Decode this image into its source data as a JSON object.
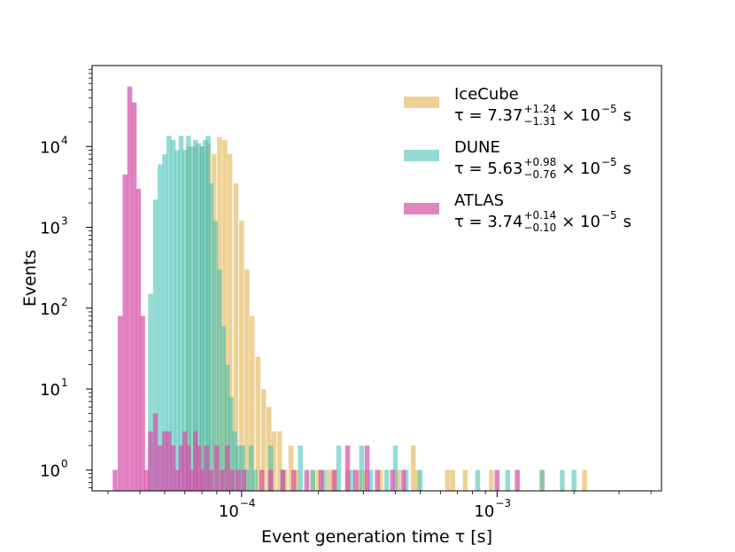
{
  "chart_data": {
    "type": "histogram",
    "title": "",
    "xlabel": "Event generation time τ [s]",
    "ylabel": "Events",
    "xscale": "log",
    "yscale": "log",
    "xlim": [
      2.6e-05,
      0.0044
    ],
    "ylim": [
      0.55,
      100000
    ],
    "x_major_ticks": [
      {
        "value": 0.0001,
        "label_base": "10",
        "label_exp": "−4"
      },
      {
        "value": 0.001,
        "label_base": "10",
        "label_exp": "−3"
      }
    ],
    "y_major_ticks": [
      {
        "value": 1,
        "label_base": "10",
        "label_exp": "0"
      },
      {
        "value": 10,
        "label_base": "10",
        "label_exp": "1"
      },
      {
        "value": 100,
        "label_base": "10",
        "label_exp": "2"
      },
      {
        "value": 1000,
        "label_base": "10",
        "label_exp": "3"
      },
      {
        "value": 10000,
        "label_base": "10",
        "label_exp": "4"
      }
    ],
    "legend_position": "top-right",
    "series": [
      {
        "name": "IceCube",
        "color": "#e3b44f",
        "opacity": 0.6,
        "tau_prefix": "τ = 7.37",
        "tau_plus": "+1.24",
        "tau_minus": "−1.31",
        "tau_suffix": "× 10",
        "tau_exp": "−5",
        "tau_unit": "s",
        "bins": [
          [
            6.2e-05,
            10000
          ],
          [
            6.6e-05,
            10000
          ],
          [
            7e-05,
            10000
          ],
          [
            7.4e-05,
            11000
          ],
          [
            7.8e-05,
            8000
          ],
          [
            8.2e-05,
            13000
          ],
          [
            8.6e-05,
            12000
          ],
          [
            9e-05,
            8000
          ],
          [
            9.5e-05,
            3500
          ],
          [
            0.0001,
            1200
          ],
          [
            0.000105,
            300
          ],
          [
            0.00011,
            80
          ],
          [
            0.000116,
            25
          ],
          [
            0.000122,
            10
          ],
          [
            0.000128,
            6
          ],
          [
            0.000134,
            3
          ],
          [
            0.000141,
            3
          ],
          [
            0.000148,
            1
          ],
          [
            0.000156,
            2
          ],
          [
            0.000164,
            1
          ],
          [
            0.00019,
            1
          ],
          [
            0.0002,
            1
          ],
          [
            0.00022,
            1
          ],
          [
            0.000232,
            1
          ],
          [
            0.00026,
            1
          ],
          [
            0.00029,
            1
          ],
          [
            0.000305,
            1
          ],
          [
            0.00035,
            1
          ],
          [
            0.00041,
            1
          ],
          [
            0.00047,
            2
          ],
          [
            0.00049,
            1
          ],
          [
            0.00064,
            1
          ],
          [
            0.00067,
            1
          ],
          [
            0.00075,
            1
          ],
          [
            0.00095,
            1
          ],
          [
            0.0015,
            1
          ],
          [
            0.0022,
            1
          ]
        ]
      },
      {
        "name": "DUNE",
        "color": "#3dbdb3",
        "opacity": 0.55,
        "tau_prefix": "τ = 5.63",
        "tau_plus": "+0.98",
        "tau_minus": "−0.76",
        "tau_suffix": "× 10",
        "tau_exp": "−5",
        "tau_unit": "s",
        "bins": [
          [
            4.4e-05,
            150
          ],
          [
            4.6e-05,
            2200
          ],
          [
            4.8e-05,
            6000
          ],
          [
            5e-05,
            8000
          ],
          [
            5.2e-05,
            13500
          ],
          [
            5.4e-05,
            12000
          ],
          [
            5.6e-05,
            9000
          ],
          [
            5.8e-05,
            13500
          ],
          [
            6e-05,
            9000
          ],
          [
            6.2e-05,
            13500
          ],
          [
            6.4e-05,
            10000
          ],
          [
            6.6e-05,
            12000
          ],
          [
            6.8e-05,
            11000
          ],
          [
            7e-05,
            10000
          ],
          [
            7.2e-05,
            12000
          ],
          [
            7.4e-05,
            13500
          ],
          [
            7.6e-05,
            3500
          ],
          [
            7.9e-05,
            1200
          ],
          [
            8.2e-05,
            300
          ],
          [
            8.5e-05,
            60
          ],
          [
            8.8e-05,
            20
          ],
          [
            9.1e-05,
            8
          ],
          [
            9.4e-05,
            3
          ],
          [
            9.7e-05,
            2
          ],
          [
            0.000101,
            2
          ],
          [
            0.000105,
            1
          ],
          [
            0.000109,
            2
          ],
          [
            0.000113,
            1
          ],
          [
            0.00013,
            2
          ],
          [
            0.000145,
            1
          ],
          [
            0.00017,
            2
          ],
          [
            0.00019,
            1
          ],
          [
            0.00021,
            1
          ],
          [
            0.00024,
            2
          ],
          [
            0.00027,
            1
          ],
          [
            0.000295,
            2
          ],
          [
            0.00032,
            1
          ],
          [
            0.00037,
            1
          ],
          [
            0.0004,
            2
          ],
          [
            0.00044,
            1
          ],
          [
            0.0005,
            1
          ],
          [
            0.00084,
            1
          ],
          [
            0.0011,
            1
          ],
          [
            0.0015,
            1
          ],
          [
            0.0018,
            1
          ],
          [
            0.002,
            1
          ]
        ]
      },
      {
        "name": "ATLAS",
        "color": "#d64fa8",
        "opacity": 0.7,
        "tau_prefix": "τ = 3.74",
        "tau_plus": "+0.14",
        "tau_minus": "−0.10",
        "tau_suffix": "× 10",
        "tau_exp": "−5",
        "tau_unit": "s",
        "bins": [
          [
            3.2e-05,
            1
          ],
          [
            3.35e-05,
            80
          ],
          [
            3.5e-05,
            4500
          ],
          [
            3.65e-05,
            55000
          ],
          [
            3.8e-05,
            35000
          ],
          [
            3.95e-05,
            3000
          ],
          [
            4.1e-05,
            80
          ],
          [
            4.25e-05,
            1
          ],
          [
            4.4e-05,
            3
          ],
          [
            4.6e-05,
            5
          ],
          [
            4.8e-05,
            2
          ],
          [
            5e-05,
            3
          ],
          [
            5.2e-05,
            3
          ],
          [
            5.4e-05,
            2
          ],
          [
            5.6e-05,
            1
          ],
          [
            5.8e-05,
            2
          ],
          [
            6e-05,
            3
          ],
          [
            6.2e-05,
            2
          ],
          [
            6.4e-05,
            1
          ],
          [
            6.6e-05,
            3
          ],
          [
            6.8e-05,
            2
          ],
          [
            7e-05,
            1
          ],
          [
            7.3e-05,
            2
          ],
          [
            7.6e-05,
            1
          ],
          [
            8e-05,
            2
          ],
          [
            8.4e-05,
            1
          ],
          [
            8.8e-05,
            2
          ],
          [
            9.2e-05,
            1
          ],
          [
            9.7e-05,
            1
          ],
          [
            0.000102,
            1
          ],
          [
            0.00012,
            1
          ],
          [
            0.00013,
            1
          ],
          [
            0.000145,
            1
          ],
          [
            0.00016,
            1
          ],
          [
            0.00018,
            1
          ],
          [
            0.000205,
            1
          ],
          [
            0.00023,
            1
          ],
          [
            0.00026,
            2
          ],
          [
            0.00028,
            1
          ],
          [
            0.00031,
            2
          ],
          [
            0.00034,
            1
          ],
          [
            0.00039,
            1
          ],
          [
            0.00043,
            1
          ],
          [
            0.001,
            1
          ],
          [
            0.0012,
            1
          ]
        ]
      }
    ]
  }
}
